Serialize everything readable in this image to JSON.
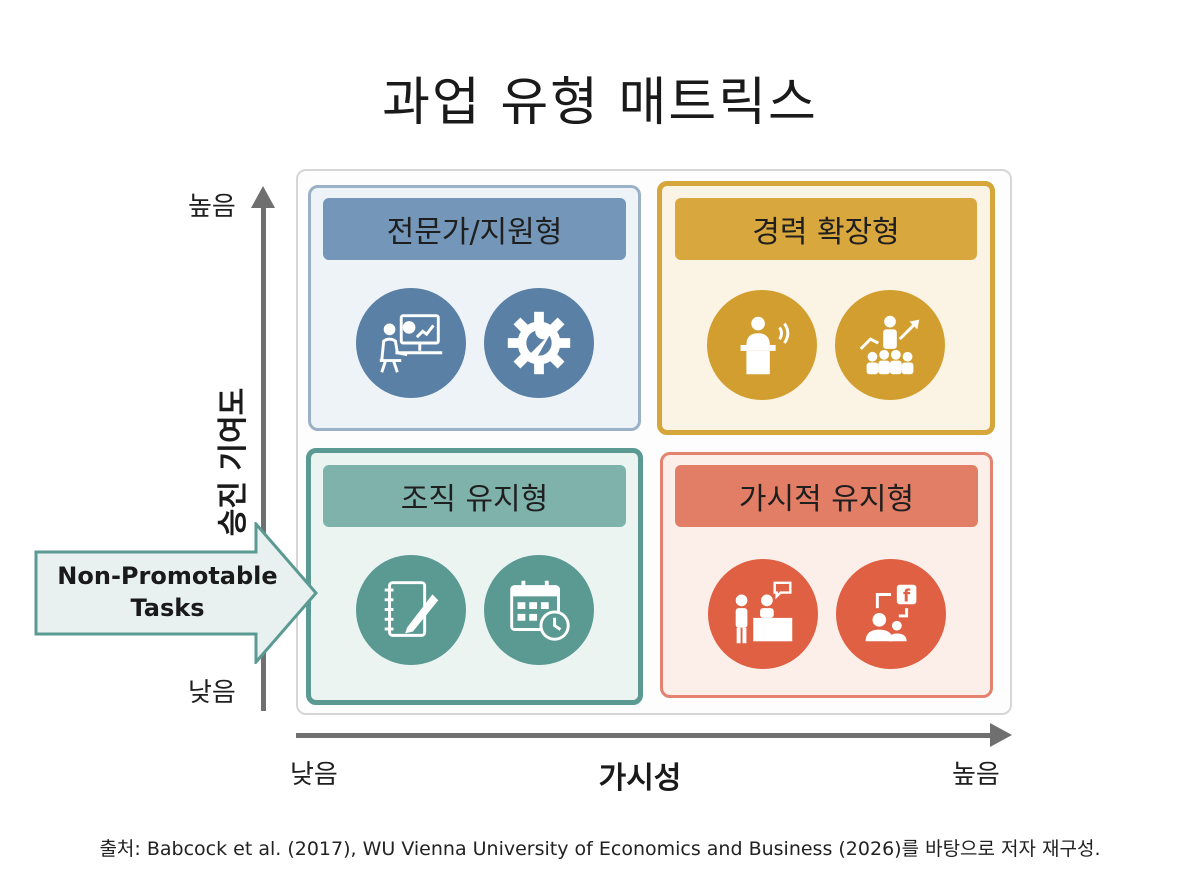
{
  "title": "과업 유형 매트릭스",
  "y_axis": {
    "title": "승진 기여도",
    "high": "높음",
    "low": "낮음"
  },
  "x_axis": {
    "title": "가시성",
    "high": "높음",
    "low": "낮음"
  },
  "quadrants": {
    "top_left": {
      "label": "전문가/지원형",
      "color": "#7496b8",
      "icons": [
        "analyst-at-desk-icon",
        "gear-wrench-icon"
      ]
    },
    "top_right": {
      "label": "경력 확장형",
      "color": "#d8a73e",
      "icons": [
        "speaker-podium-icon",
        "leader-growth-icon"
      ]
    },
    "bottom_left": {
      "label": "조직 유지형",
      "color": "#80b2ac",
      "icons": [
        "notebook-pencil-icon",
        "calendar-clock-icon"
      ]
    },
    "bottom_right": {
      "label": "가시적 유지형",
      "color": "#e37e66",
      "icons": [
        "reception-desk-icon",
        "social-media-icon"
      ]
    }
  },
  "callout": {
    "line1": "Non-Promotable",
    "line2": "Tasks"
  },
  "source": "출처: Babcock et al. (2017), WU Vienna University of Economics and Business (2026)를 바탕으로 저자 재구성."
}
